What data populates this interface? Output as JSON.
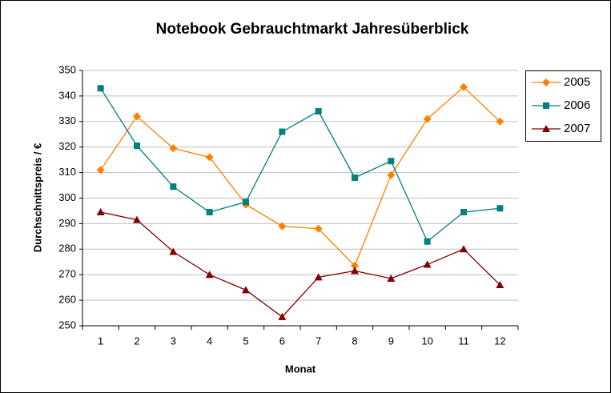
{
  "chart_data": {
    "type": "line",
    "title": "Notebook Gebrauchtmarkt Jahresüberblick",
    "x_label": "Monat",
    "y_label": "Durchschnittspreis / €",
    "categories": [
      "1",
      "2",
      "3",
      "4",
      "5",
      "6",
      "7",
      "8",
      "9",
      "10",
      "11",
      "12"
    ],
    "series": [
      {
        "name": "2005",
        "color": "#ff8000",
        "marker": "diamond",
        "values": [
          311,
          332,
          319.5,
          316,
          297.5,
          289,
          288,
          273.5,
          309,
          331,
          343.5,
          330
        ]
      },
      {
        "name": "2006",
        "color": "#008080",
        "marker": "square",
        "values": [
          343,
          320.5,
          304.5,
          294.5,
          298.5,
          326,
          334,
          308,
          314.5,
          283,
          294.5,
          296
        ]
      },
      {
        "name": "2007",
        "color": "#800000",
        "marker": "triangle",
        "values": [
          294.5,
          291.5,
          279,
          270,
          264,
          253.5,
          269,
          271.5,
          268.5,
          274,
          280,
          266
        ]
      }
    ],
    "ylim": [
      250,
      350
    ],
    "yticks": [
      250,
      260,
      270,
      280,
      290,
      300,
      310,
      320,
      330,
      340,
      350
    ],
    "grid": true,
    "legend": "right"
  }
}
